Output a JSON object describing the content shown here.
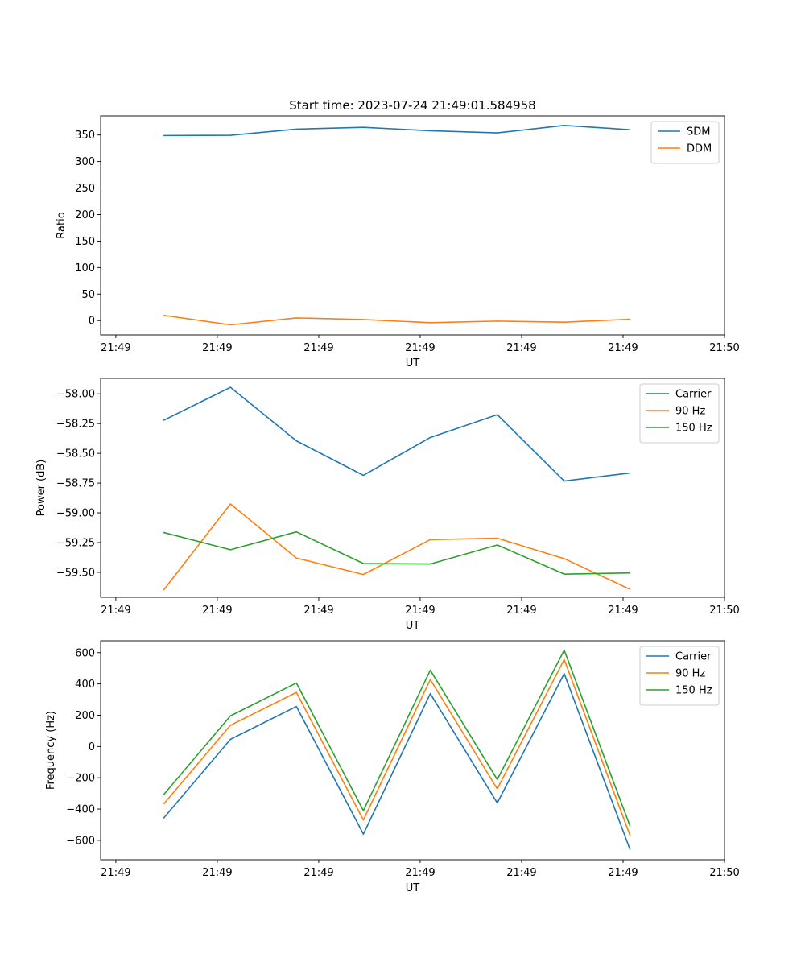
{
  "chart_data": [
    {
      "type": "line",
      "title": "Start time: 2023-07-24 21:49:01.584958",
      "xlabel": "UT",
      "ylabel": "Ratio",
      "xtick_labels": [
        "21:49",
        "21:49",
        "21:49",
        "21:49",
        "21:49",
        "21:49",
        "21:50"
      ],
      "xticks": [
        0,
        1,
        2,
        3,
        4,
        5,
        6
      ],
      "xlim": [
        -0.15,
        6.0
      ],
      "ylim": [
        -27,
        386
      ],
      "yticks": [
        0,
        50,
        100,
        150,
        200,
        250,
        300,
        350
      ],
      "ytick_labels": [
        "0",
        "50",
        "100",
        "150",
        "200",
        "250",
        "300",
        "350"
      ],
      "x": [
        0.47,
        1.13,
        1.78,
        2.44,
        3.1,
        3.76,
        4.42,
        5.07
      ],
      "legend_position": "top-right",
      "series": [
        {
          "name": "SDM",
          "color": "#1f77b4",
          "values": [
            349,
            349.5,
            361,
            364.5,
            358,
            354,
            368,
            360
          ]
        },
        {
          "name": "DDM",
          "color": "#ff7f0e",
          "values": [
            10,
            -8,
            5,
            2,
            -4,
            -1,
            -3,
            2.5
          ]
        }
      ]
    },
    {
      "type": "line",
      "title": "",
      "xlabel": "UT",
      "ylabel": "Power (dB)",
      "xtick_labels": [
        "21:49",
        "21:49",
        "21:49",
        "21:49",
        "21:49",
        "21:49",
        "21:50"
      ],
      "xticks": [
        0,
        1,
        2,
        3,
        4,
        5,
        6
      ],
      "xlim": [
        -0.15,
        6.0
      ],
      "ylim": [
        -59.71,
        -57.87
      ],
      "yticks": [
        -58.0,
        -58.25,
        -58.5,
        -58.75,
        -59.0,
        -59.25,
        -59.5
      ],
      "ytick_labels": [
        "−58.00",
        "−58.25",
        "−58.50",
        "−58.75",
        "−59.00",
        "−59.25",
        "−59.50"
      ],
      "x": [
        0.47,
        1.13,
        1.78,
        2.44,
        3.1,
        3.76,
        4.42,
        5.07
      ],
      "legend_position": "top-right",
      "series": [
        {
          "name": "Carrier",
          "color": "#1f77b4",
          "values": [
            -58.223,
            -57.945,
            -58.395,
            -58.685,
            -58.367,
            -58.175,
            -58.733,
            -58.665
          ]
        },
        {
          "name": "90 Hz",
          "color": "#ff7f0e",
          "values": [
            -59.65,
            -58.925,
            -59.38,
            -59.518,
            -59.225,
            -59.213,
            -59.385,
            -59.643
          ]
        },
        {
          "name": "150 Hz",
          "color": "#2ca02c",
          "values": [
            -59.165,
            -59.31,
            -59.16,
            -59.426,
            -59.43,
            -59.27,
            -59.515,
            -59.505
          ]
        }
      ]
    },
    {
      "type": "line",
      "title": "",
      "xlabel": "UT",
      "ylabel": "Frequency (Hz)",
      "xtick_labels": [
        "21:49",
        "21:49",
        "21:49",
        "21:49",
        "21:49",
        "21:49",
        "21:50"
      ],
      "xticks": [
        0,
        1,
        2,
        3,
        4,
        5,
        6
      ],
      "xlim": [
        -0.15,
        6.0
      ],
      "ylim": [
        -724,
        676
      ],
      "yticks": [
        600,
        400,
        200,
        0,
        -200,
        -400,
        -600
      ],
      "ytick_labels": [
        "600",
        "400",
        "200",
        "0",
        "−200",
        "−400",
        "−600"
      ],
      "x": [
        0.47,
        1.13,
        1.78,
        2.44,
        3.1,
        3.76,
        4.42,
        5.07
      ],
      "legend_position": "top-right",
      "series": [
        {
          "name": "Carrier",
          "color": "#1f77b4",
          "values": [
            -459,
            46,
            256,
            -560,
            338,
            -361,
            466,
            -661
          ]
        },
        {
          "name": "90 Hz",
          "color": "#ff7f0e",
          "values": [
            -369,
            136,
            346,
            -470,
            428,
            -271,
            556,
            -571
          ]
        },
        {
          "name": "150 Hz",
          "color": "#2ca02c",
          "values": [
            -309,
            196,
            406,
            -410,
            488,
            -211,
            616,
            -511
          ]
        }
      ]
    }
  ]
}
